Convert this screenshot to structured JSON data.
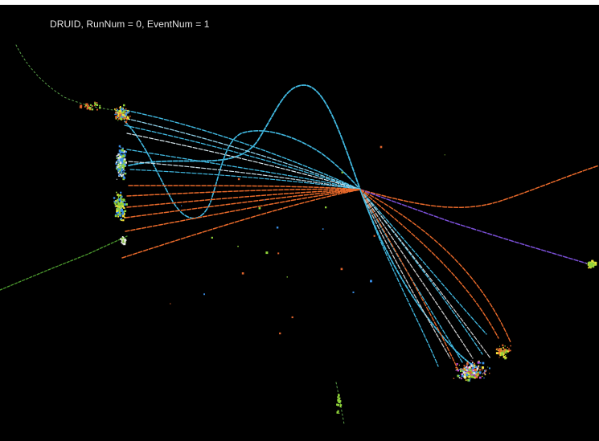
{
  "display": {
    "title": "DRUID, RunNum = 0, EventNum = 1"
  },
  "colors": {
    "background": "#000000",
    "title_text": "#e6e6e6",
    "track_cyan": "#41b8e0",
    "track_orange": "#e8692a",
    "track_purple": "#7a4fd6",
    "track_green": "#4c9a2e",
    "hits_green": "#8fd33a",
    "hits_orange": "#e0642c",
    "hits_blue": "#3a8fe8",
    "hits_yellow": "#f3e23a",
    "hits_white": "#e8e8e8",
    "hits_magenta": "#c04bd6"
  }
}
